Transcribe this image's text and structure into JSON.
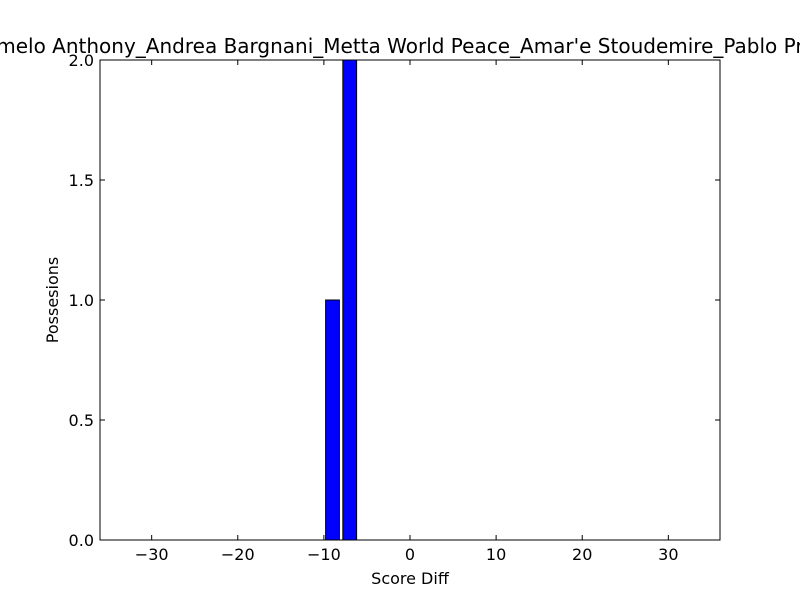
{
  "chart_data": {
    "type": "bar",
    "title": "Carmelo Anthony_Andrea Bargnani_Metta World Peace_Amar'e Stoudemire_Pablo Prigioni",
    "xlabel": "Score Diff",
    "ylabel": "Possesions",
    "xlim": [
      -36,
      36
    ],
    "ylim": [
      0,
      2
    ],
    "x_ticks": [
      -30,
      -20,
      -10,
      0,
      10,
      20,
      30
    ],
    "y_ticks": [
      0.0,
      0.5,
      1.0,
      1.5,
      2.0
    ],
    "x_tick_labels": [
      "−30",
      "−20",
      "−10",
      "0",
      "10",
      "20",
      "30"
    ],
    "y_tick_labels": [
      "0.0",
      "0.5",
      "1.0",
      "1.5",
      "2.0"
    ],
    "bar_width": 1.6,
    "bars": [
      {
        "x": -9,
        "value": 1
      },
      {
        "x": -7,
        "value": 2
      }
    ],
    "bar_color": "#0000ff",
    "bar_edge_color": "#000000",
    "grid": false,
    "legend": "none"
  }
}
